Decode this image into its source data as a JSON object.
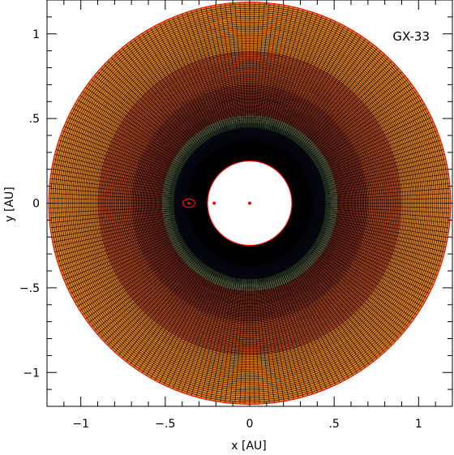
{
  "chart_data": {
    "type": "scatter",
    "title": "",
    "panel_label": "GX-33",
    "xlabel": "x [AU]",
    "ylabel": "y [AU]",
    "xlim": [
      -1.2,
      1.2
    ],
    "ylim": [
      -1.2,
      1.2
    ],
    "xticks": [
      -1,
      -0.5,
      0,
      0.5,
      1
    ],
    "yticks": [
      -1,
      -0.5,
      0,
      0.5,
      1
    ],
    "xtick_labels": [
      "−1",
      "−.5",
      "0",
      ".5",
      "1"
    ],
    "ytick_labels": [
      "−1",
      "−.5",
      "0",
      ".5",
      "1"
    ],
    "grid": false,
    "disk": {
      "inner_radius": 0.25,
      "outer_radius": 1.19,
      "radial_zones": [
        {
          "from": 0.25,
          "to": 0.37,
          "color": "#0a0a14"
        },
        {
          "from": 0.37,
          "to": 0.45,
          "color": "#14183a"
        },
        {
          "from": 0.45,
          "to": 0.48,
          "color": "#5f8a5a"
        },
        {
          "from": 0.48,
          "to": 0.52,
          "color": "#9aa070"
        },
        {
          "from": 0.52,
          "to": 0.7,
          "color": "#a83a24"
        },
        {
          "from": 0.7,
          "to": 0.9,
          "color": "#c9511e"
        },
        {
          "from": 0.9,
          "to": 1.19,
          "color": "#e8851c"
        }
      ],
      "grid_color": "#000000",
      "edge_color": "#ff0000"
    },
    "markers": [
      {
        "x": 0.0,
        "y": 0.0,
        "shape": "dot"
      },
      {
        "x": -0.21,
        "y": 0.0,
        "shape": "dot"
      },
      {
        "x": -0.36,
        "y": 0.0,
        "shape": "ellipse",
        "rx": 0.035,
        "ry": 0.025
      }
    ],
    "marker_color": "#ff0000"
  }
}
